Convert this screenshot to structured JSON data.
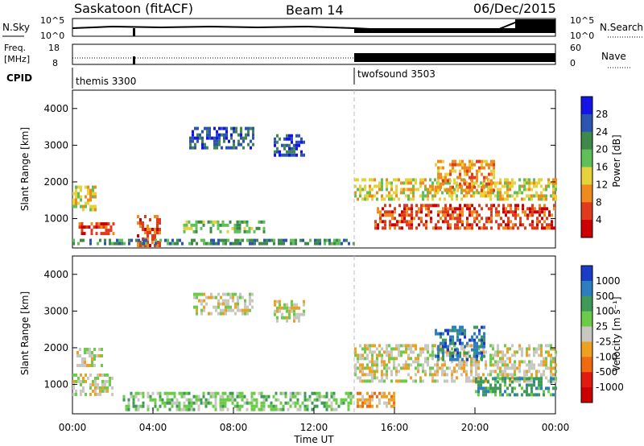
{
  "header": {
    "station": "Saskatoon (fitACF)",
    "beam": "Beam 14",
    "date": "06/Dec/2015"
  },
  "strip_labels": {
    "nsky": "N.Sky",
    "freq_line1": "Freq.",
    "freq_line2": "[MHz]",
    "cpid": "CPID",
    "nsearch": "N.Search",
    "nave": "Nave",
    "nsky_ticks": [
      "10^5",
      "10^0"
    ],
    "nsearch_ticks": [
      "10^5",
      "10^0"
    ],
    "freq_ticks": [
      "18",
      "8"
    ],
    "nave_ticks": [
      "60",
      "0"
    ]
  },
  "cpid_modes": [
    {
      "label": "themis 3300",
      "start_hour": 0
    },
    {
      "label": "twofsound 3503",
      "start_hour": 14
    }
  ],
  "chart_data": [
    {
      "type": "heatmap",
      "name": "power",
      "ylabel": "Slant Range [km]",
      "ylim": [
        200,
        4500
      ],
      "yticks": [
        1000,
        2000,
        3000,
        4000
      ],
      "xlim": [
        0,
        24
      ],
      "colorbar": {
        "label": "Power [dB]",
        "ticks": [
          "4",
          "8",
          "12",
          "16",
          "20",
          "24",
          "28"
        ],
        "colors": [
          "#1414e6",
          "#2c55b3",
          "#3f8a4a",
          "#5fc05a",
          "#e6d23a",
          "#f08a1c",
          "#e23a1c",
          "#cc0000"
        ]
      },
      "regions": [
        {
          "t0": 0.0,
          "t1": 1.2,
          "r0": 1200,
          "r1": 1900,
          "level": 4
        },
        {
          "t0": 0.3,
          "t1": 2.0,
          "r0": 600,
          "r1": 900,
          "level": 6
        },
        {
          "t0": 3.2,
          "t1": 4.3,
          "r0": 300,
          "r1": 1100,
          "level": 6
        },
        {
          "t0": 5.5,
          "t1": 9.5,
          "r0": 650,
          "r1": 950,
          "level": 3
        },
        {
          "t0": 5.8,
          "t1": 9.0,
          "r0": 2900,
          "r1": 3500,
          "level": 1
        },
        {
          "t0": 10.0,
          "t1": 11.5,
          "r0": 2700,
          "r1": 3300,
          "level": 1
        },
        {
          "t0": 0.0,
          "t1": 14.0,
          "r0": 300,
          "r1": 450,
          "level": 2
        },
        {
          "t0": 14.0,
          "t1": 24.0,
          "r0": 1500,
          "r1": 2100,
          "level": 4
        },
        {
          "t0": 15.0,
          "t1": 24.0,
          "r0": 700,
          "r1": 1400,
          "level": 6
        },
        {
          "t0": 18.0,
          "t1": 21.0,
          "r0": 1800,
          "r1": 2600,
          "level": 5
        }
      ]
    },
    {
      "type": "heatmap",
      "name": "velocity",
      "ylabel": "Slant Range [km]",
      "xlabel": "Time UT",
      "ylim": [
        200,
        4500
      ],
      "yticks": [
        1000,
        2000,
        3000,
        4000
      ],
      "xlim": [
        0,
        24
      ],
      "xticks": [
        "00:00",
        "04:00",
        "08:00",
        "12:00",
        "16:00",
        "20:00",
        "00:00"
      ],
      "colorbar": {
        "label": "Velocity [m s⁻¹]",
        "ticks": [
          "1000",
          "500",
          "100",
          "25",
          "-25",
          "-100",
          "-500",
          "-1000"
        ],
        "colors": [
          "#1a3cc8",
          "#2c7fbf",
          "#3f9a5a",
          "#6ccc4a",
          "#c8c8c0",
          "#f0a020",
          "#f06a10",
          "#e21a10",
          "#cc0000"
        ]
      },
      "regions": [
        {
          "t0": 0.0,
          "t1": 2.0,
          "r0": 700,
          "r1": 1300,
          "level": 4
        },
        {
          "t0": 0.2,
          "t1": 1.5,
          "r0": 1500,
          "r1": 2000,
          "level": 4
        },
        {
          "t0": 2.5,
          "t1": 14.0,
          "r0": 300,
          "r1": 800,
          "level": 3
        },
        {
          "t0": 6.0,
          "t1": 9.0,
          "r0": 2900,
          "r1": 3500,
          "level": 4
        },
        {
          "t0": 10.0,
          "t1": 11.5,
          "r0": 2700,
          "r1": 3300,
          "level": 4
        },
        {
          "t0": 14.0,
          "t1": 24.0,
          "r0": 1100,
          "r1": 2100,
          "level": 4
        },
        {
          "t0": 18.0,
          "t1": 20.5,
          "r0": 1700,
          "r1": 2600,
          "level": 1
        },
        {
          "t0": 20.0,
          "t1": 24.0,
          "r0": 700,
          "r1": 1200,
          "level": 2
        },
        {
          "t0": 14.0,
          "t1": 16.0,
          "r0": 400,
          "r1": 800,
          "level": 5
        }
      ]
    }
  ]
}
